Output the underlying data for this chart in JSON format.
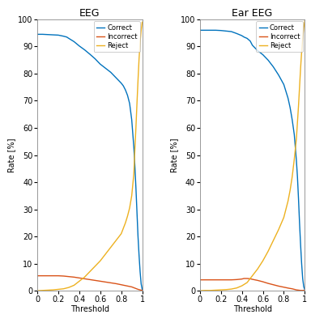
{
  "titles": [
    "EEG",
    "Ear EEG"
  ],
  "xlabel": "Threshold",
  "ylabel": "Rate [%]",
  "ylim": [
    0,
    100
  ],
  "xlim": [
    0,
    1
  ],
  "yticks": [
    0,
    10,
    20,
    30,
    40,
    50,
    60,
    70,
    80,
    90,
    100
  ],
  "xticks": [
    0,
    0.2,
    0.4,
    0.6,
    0.8,
    1.0
  ],
  "legend_labels": [
    "Correct",
    "Incorrect",
    "Reject"
  ],
  "colors": {
    "correct": "#0072BD",
    "incorrect": "#D95319",
    "reject": "#EDB120"
  },
  "background_color": "#ffffff",
  "eeg": {
    "correct_x": [
      0.0,
      0.05,
      0.1,
      0.15,
      0.2,
      0.25,
      0.28,
      0.3,
      0.35,
      0.4,
      0.45,
      0.5,
      0.55,
      0.6,
      0.65,
      0.7,
      0.75,
      0.8,
      0.82,
      0.84,
      0.86,
      0.88,
      0.9,
      0.92,
      0.93,
      0.94,
      0.95,
      0.96,
      0.97,
      0.98,
      0.99,
      1.0
    ],
    "correct_y": [
      94.5,
      94.5,
      94.4,
      94.3,
      94.2,
      93.8,
      93.5,
      93.0,
      91.8,
      90.2,
      88.8,
      87.2,
      85.5,
      83.5,
      82.0,
      80.5,
      78.5,
      76.5,
      75.5,
      74.0,
      72.0,
      69.0,
      63.0,
      53.0,
      46.0,
      38.0,
      29.0,
      20.0,
      13.0,
      7.0,
      2.5,
      0.5
    ],
    "incorrect_x": [
      0.0,
      0.05,
      0.1,
      0.15,
      0.2,
      0.25,
      0.3,
      0.35,
      0.4,
      0.45,
      0.5,
      0.55,
      0.6,
      0.65,
      0.7,
      0.75,
      0.8,
      0.85,
      0.9,
      0.92,
      0.94,
      0.96,
      0.98,
      1.0
    ],
    "incorrect_y": [
      5.5,
      5.5,
      5.5,
      5.5,
      5.5,
      5.4,
      5.2,
      5.0,
      4.7,
      4.4,
      4.1,
      3.8,
      3.5,
      3.2,
      2.9,
      2.6,
      2.2,
      1.8,
      1.4,
      1.1,
      0.8,
      0.5,
      0.3,
      0.1
    ],
    "reject_x": [
      0.0,
      0.05,
      0.1,
      0.15,
      0.2,
      0.25,
      0.3,
      0.35,
      0.4,
      0.45,
      0.5,
      0.55,
      0.6,
      0.65,
      0.7,
      0.75,
      0.8,
      0.82,
      0.84,
      0.86,
      0.88,
      0.9,
      0.92,
      0.93,
      0.94,
      0.95,
      0.96,
      0.97,
      0.98,
      0.99,
      1.0
    ],
    "reject_y": [
      0.0,
      0.1,
      0.2,
      0.3,
      0.5,
      0.7,
      1.2,
      2.0,
      3.5,
      5.0,
      7.0,
      9.0,
      11.0,
      13.5,
      16.0,
      18.5,
      21.0,
      23.0,
      25.0,
      27.5,
      30.5,
      35.0,
      43.0,
      52.0,
      60.0,
      69.0,
      77.5,
      85.5,
      91.5,
      96.0,
      99.0
    ]
  },
  "ear_eeg": {
    "correct_x": [
      0.0,
      0.05,
      0.1,
      0.15,
      0.2,
      0.25,
      0.3,
      0.35,
      0.4,
      0.42,
      0.45,
      0.48,
      0.5,
      0.55,
      0.6,
      0.65,
      0.7,
      0.75,
      0.8,
      0.82,
      0.84,
      0.86,
      0.88,
      0.9,
      0.92,
      0.93,
      0.94,
      0.95,
      0.96,
      0.97,
      0.98,
      0.99,
      1.0
    ],
    "correct_y": [
      96.0,
      96.0,
      96.0,
      96.0,
      95.9,
      95.7,
      95.5,
      94.8,
      94.0,
      93.5,
      93.0,
      92.0,
      90.5,
      88.5,
      87.0,
      85.0,
      82.5,
      79.5,
      76.0,
      73.5,
      71.0,
      67.5,
      63.0,
      57.5,
      48.0,
      42.0,
      34.0,
      25.0,
      17.0,
      10.0,
      4.5,
      1.5,
      0.3
    ],
    "incorrect_x": [
      0.0,
      0.05,
      0.1,
      0.15,
      0.2,
      0.25,
      0.3,
      0.35,
      0.4,
      0.42,
      0.45,
      0.48,
      0.5,
      0.55,
      0.6,
      0.65,
      0.7,
      0.75,
      0.8,
      0.85,
      0.88,
      0.9,
      0.92,
      0.94,
      0.96,
      0.98,
      1.0
    ],
    "incorrect_y": [
      4.0,
      4.0,
      4.0,
      4.0,
      4.0,
      4.0,
      4.0,
      4.1,
      4.3,
      4.5,
      4.5,
      4.4,
      4.2,
      3.8,
      3.3,
      2.7,
      2.2,
      1.7,
      1.3,
      0.9,
      0.7,
      0.5,
      0.3,
      0.2,
      0.1,
      0.1,
      0.1
    ],
    "reject_x": [
      0.0,
      0.05,
      0.1,
      0.15,
      0.2,
      0.25,
      0.3,
      0.35,
      0.4,
      0.45,
      0.5,
      0.55,
      0.6,
      0.65,
      0.7,
      0.75,
      0.8,
      0.82,
      0.84,
      0.86,
      0.88,
      0.9,
      0.92,
      0.93,
      0.94,
      0.95,
      0.96,
      0.97,
      0.98,
      0.99,
      1.0
    ],
    "reject_y": [
      0.0,
      0.1,
      0.1,
      0.2,
      0.3,
      0.4,
      0.6,
      1.0,
      1.8,
      3.0,
      5.5,
      8.0,
      11.0,
      14.5,
      18.5,
      22.5,
      27.0,
      30.0,
      33.0,
      37.0,
      42.0,
      48.5,
      56.0,
      62.0,
      68.0,
      75.0,
      82.0,
      88.0,
      93.0,
      97.0,
      99.5
    ]
  },
  "figsize": [
    3.84,
    3.99
  ],
  "dpi": 100,
  "title_fontsize": 9,
  "label_fontsize": 7,
  "tick_fontsize": 7,
  "legend_fontsize": 6,
  "linewidth": 1.0
}
